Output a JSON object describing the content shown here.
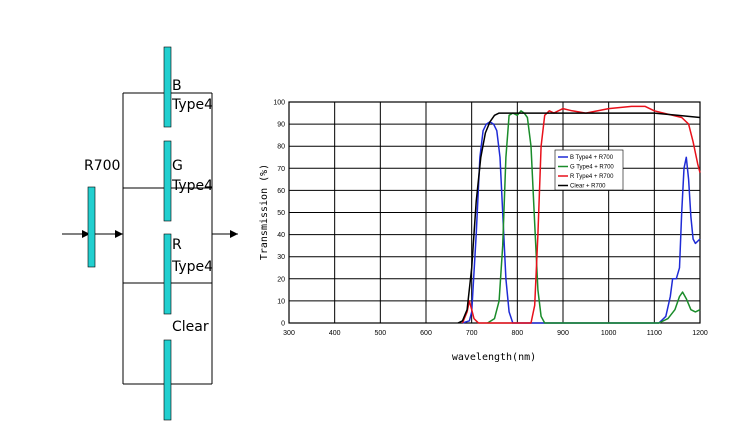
{
  "diagram": {
    "input_filter_label": "R700",
    "branches": [
      {
        "line1": "B",
        "line2": "Type4"
      },
      {
        "line1": "G",
        "line2": "Type4"
      },
      {
        "line1": "R",
        "line2": "Type4"
      },
      {
        "line1": "Clear",
        "line2": ""
      }
    ],
    "filter_color": "#22cfcf"
  },
  "chart_data": {
    "type": "line",
    "xlabel": "wavelength(nm)",
    "ylabel": "Transmission (%)",
    "xlim": [
      300,
      1200
    ],
    "ylim": [
      0,
      100
    ],
    "xticks": [
      300,
      400,
      500,
      600,
      700,
      800,
      900,
      1000,
      1100,
      1200
    ],
    "yticks": [
      0,
      10,
      20,
      30,
      40,
      50,
      60,
      70,
      80,
      90,
      100
    ],
    "grid": true,
    "legend_position": "top-right",
    "series": [
      {
        "name": "B Type4 + R700",
        "color": "#1f2bd6",
        "x": [
          680,
          695,
          700,
          710,
          718,
          725,
          732,
          740,
          748,
          755,
          762,
          768,
          775,
          782,
          790,
          1110,
          1125,
          1135,
          1140,
          1148,
          1155,
          1160,
          1165,
          1170,
          1175,
          1180,
          1185,
          1190,
          1200
        ],
        "y": [
          0,
          1,
          5,
          40,
          75,
          87,
          90,
          91,
          90,
          87,
          75,
          50,
          20,
          5,
          0,
          0,
          3,
          12,
          20,
          20,
          25,
          50,
          70,
          75,
          65,
          48,
          38,
          36,
          38
        ]
      },
      {
        "name": "G Type4 + R700",
        "color": "#1a8c2a",
        "x": [
          735,
          750,
          760,
          768,
          775,
          782,
          790,
          800,
          808,
          815,
          822,
          830,
          838,
          845,
          852,
          860,
          1110,
          1130,
          1145,
          1155,
          1162,
          1170,
          1180,
          1190,
          1200
        ],
        "y": [
          0,
          2,
          10,
          35,
          75,
          94,
          95,
          94,
          96,
          95,
          93,
          80,
          45,
          15,
          3,
          0,
          0,
          2,
          6,
          12,
          14,
          11,
          6,
          5,
          6
        ]
      },
      {
        "name": "R Type4 + R700",
        "color": "#e8101a",
        "x": [
          680,
          690,
          695,
          700,
          705,
          710,
          715,
          830,
          838,
          845,
          852,
          860,
          870,
          880,
          890,
          900,
          920,
          950,
          1000,
          1050,
          1080,
          1100,
          1120,
          1140,
          1160,
          1175,
          1185,
          1195,
          1200
        ],
        "y": [
          0,
          5,
          10,
          6,
          2,
          1,
          0,
          0,
          8,
          40,
          80,
          94,
          96,
          95,
          96,
          97,
          96,
          95,
          97,
          98,
          98,
          96,
          95,
          94,
          93,
          90,
          82,
          72,
          68
        ]
      },
      {
        "name": "Clear + R700",
        "color": "#000000",
        "x": [
          670,
          680,
          690,
          700,
          710,
          720,
          730,
          740,
          750,
          760,
          780,
          800,
          850,
          900,
          1000,
          1100,
          1150,
          1200
        ],
        "y": [
          0,
          1,
          6,
          25,
          55,
          75,
          86,
          91,
          94,
          95,
          95,
          95,
          95,
          95,
          95,
          95,
          94,
          93
        ]
      }
    ]
  }
}
